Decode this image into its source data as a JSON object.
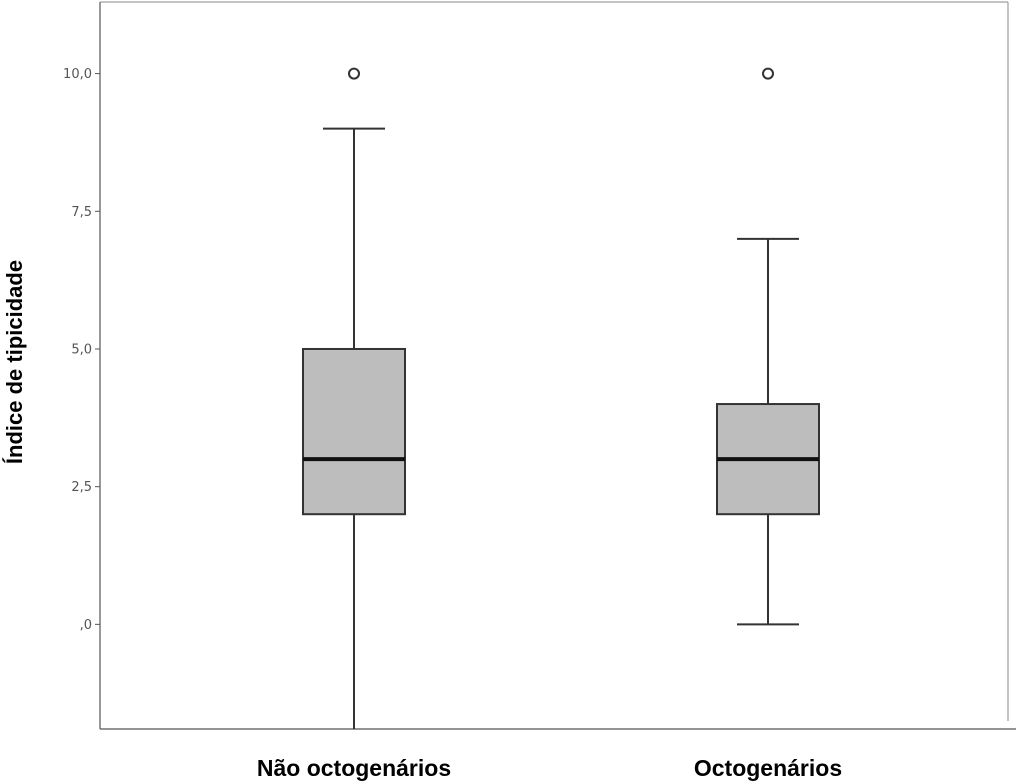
{
  "chart_data": {
    "type": "boxplot",
    "ylabel": "Índice de tipicidade",
    "xlabel": "",
    "ylim": [
      -1.9,
      11.3
    ],
    "yticks": [
      {
        "value": 0,
        "label": ",0"
      },
      {
        "value": 2.5,
        "label": "2,5"
      },
      {
        "value": 5,
        "label": "5,0"
      },
      {
        "value": 7.5,
        "label": "7,5"
      },
      {
        "value": 10,
        "label": "10,0"
      }
    ],
    "categories": [
      "Não octogenários",
      "Octogenários"
    ],
    "boxes": [
      {
        "category": "Não octogenários",
        "whisker_low": -2,
        "q1": 2,
        "median": 3,
        "q3": 5,
        "whisker_high": 9,
        "outliers": [
          10
        ]
      },
      {
        "category": "Octogenários",
        "whisker_low": 0,
        "q1": 2,
        "median": 3,
        "q3": 4,
        "whisker_high": 7,
        "outliers": [
          10
        ]
      }
    ],
    "box_fill": "#bdbdbd",
    "line_color": "#333333",
    "grid": false
  }
}
